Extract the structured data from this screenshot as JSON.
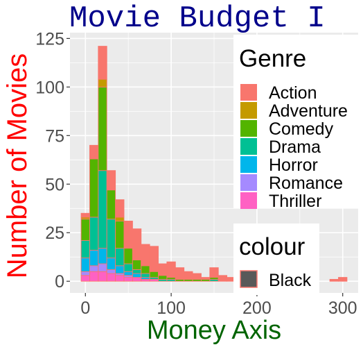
{
  "chart_data": {
    "type": "bar",
    "stacked": true,
    "title": "Movie Budget I",
    "xlabel": "Money Axis",
    "ylabel": "Number of Movies",
    "xlim": [
      -18,
      318
    ],
    "ylim": [
      -6,
      128
    ],
    "x_ticks": [
      0,
      100,
      200,
      300
    ],
    "y_ticks": [
      0,
      25,
      50,
      75,
      100,
      125
    ],
    "bin_width": 10,
    "bin_centers": [
      0,
      10,
      20,
      30,
      40,
      50,
      60,
      70,
      80,
      90,
      100,
      110,
      120,
      130,
      140,
      150,
      160,
      170,
      180,
      190,
      200,
      210,
      220,
      230,
      240,
      250,
      260,
      270,
      280,
      290,
      300
    ],
    "series": [
      {
        "name": "Thriller",
        "color": "#FF61C3",
        "values": [
          3,
          5,
          5,
          4,
          3,
          2,
          2,
          1,
          1,
          0,
          0,
          0,
          0,
          0,
          0,
          0,
          0,
          0,
          0,
          0,
          0,
          0,
          0,
          0,
          0,
          0,
          0,
          0,
          0,
          0,
          0
        ]
      },
      {
        "name": "Romance",
        "color": "#A58AFF",
        "values": [
          2,
          3,
          4,
          2,
          1,
          1,
          0,
          0,
          0,
          0,
          0,
          0,
          0,
          0,
          0,
          0,
          0,
          0,
          0,
          0,
          0,
          0,
          0,
          0,
          0,
          0,
          0,
          0,
          0,
          0,
          0
        ]
      },
      {
        "name": "Horror",
        "color": "#00B6EB",
        "values": [
          7,
          8,
          8,
          6,
          4,
          2,
          2,
          1,
          0,
          0,
          0,
          0,
          0,
          0,
          0,
          0,
          0,
          0,
          0,
          0,
          0,
          0,
          0,
          0,
          0,
          0,
          0,
          0,
          0,
          0,
          0
        ]
      },
      {
        "name": "Drama",
        "color": "#00C094",
        "values": [
          9,
          17,
          40,
          20,
          9,
          4,
          2,
          2,
          1,
          1,
          1,
          0,
          0,
          0,
          0,
          1,
          0,
          0,
          0,
          0,
          0,
          0,
          0,
          0,
          0,
          0,
          0,
          0,
          0,
          0,
          0
        ]
      },
      {
        "name": "Comedy",
        "color": "#53B400",
        "values": [
          11,
          30,
          43,
          15,
          14,
          8,
          5,
          4,
          3,
          2,
          1,
          1,
          1,
          1,
          1,
          1,
          0,
          0,
          0,
          0,
          0,
          0,
          0,
          0,
          0,
          0,
          0,
          0,
          0,
          0,
          0
        ]
      },
      {
        "name": "Adventure",
        "color": "#C49A00",
        "values": [
          1,
          0,
          4,
          0,
          2,
          0,
          0,
          0,
          0,
          0,
          0,
          0,
          0,
          0,
          0,
          0,
          0,
          0,
          0,
          0,
          0,
          0,
          0,
          0,
          0,
          0,
          0,
          0,
          0,
          0,
          0
        ]
      },
      {
        "name": "Action",
        "color": "#F8766D",
        "values": [
          2,
          7,
          17,
          10,
          9,
          14,
          16,
          11,
          13,
          6,
          8,
          6,
          4,
          3,
          1,
          5,
          3,
          2,
          2,
          1,
          1,
          1,
          0,
          0,
          0,
          0,
          0,
          0,
          0,
          1,
          2
        ]
      }
    ],
    "grid": true,
    "legend_position": "right"
  },
  "legends": {
    "genre": {
      "title": "Genre",
      "items": [
        {
          "label": "Action",
          "color": "#F8766D"
        },
        {
          "label": "Adventure",
          "color": "#C49A00"
        },
        {
          "label": "Comedy",
          "color": "#53B400"
        },
        {
          "label": "Drama",
          "color": "#00C094"
        },
        {
          "label": "Horror",
          "color": "#00B6EB"
        },
        {
          "label": "Romance",
          "color": "#A58AFF"
        },
        {
          "label": "Thriller",
          "color": "#FF61C3"
        }
      ]
    },
    "colour": {
      "title": "colour",
      "items": [
        {
          "label": "Black",
          "fill": "#595959",
          "stroke": "#F8766D"
        }
      ]
    }
  },
  "styles": {
    "panel_bg": "#EBEBEB",
    "grid_color": "#FFFFFF",
    "title_color": "#00008B",
    "xlabel_color": "#006400",
    "ylabel_color": "#FF0000",
    "tick_color": "#4D4D4D",
    "bar_outline": "#F8766D"
  }
}
